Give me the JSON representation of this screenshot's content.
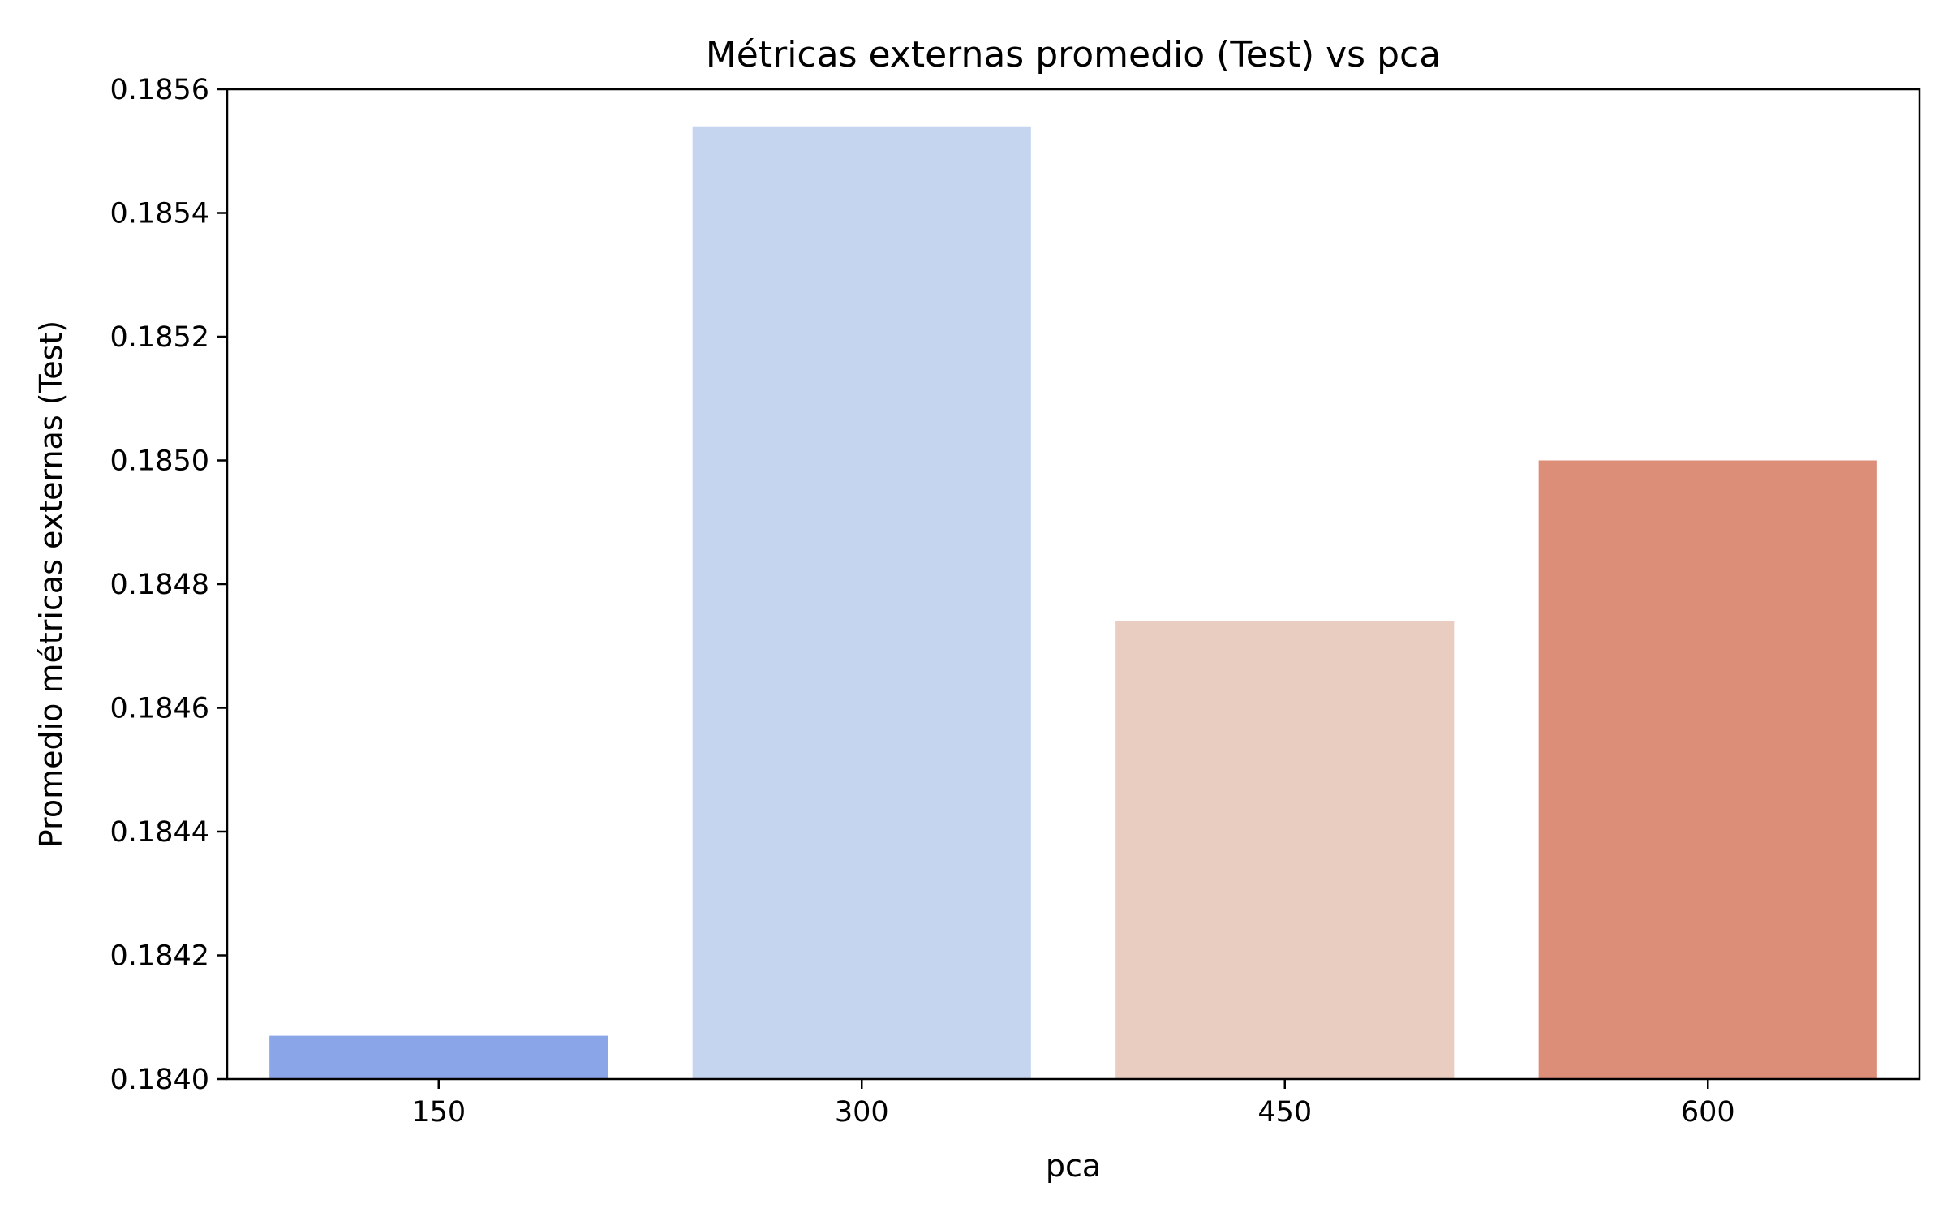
{
  "chart_data": {
    "type": "bar",
    "title": "Métricas externas promedio (Test) vs pca",
    "xlabel": "pca",
    "ylabel": "Promedio métricas externas (Test)",
    "categories": [
      "150",
      "300",
      "450",
      "600"
    ],
    "values": [
      0.18407,
      0.18554,
      0.18474,
      0.185
    ],
    "colors": [
      "#8aa5e8",
      "#c6d5ef",
      "#e9cdc0",
      "#dc8e78"
    ],
    "ylim": [
      0.184,
      0.1856
    ],
    "yticks": [
      0.184,
      0.1842,
      0.1844,
      0.1846,
      0.1848,
      0.185,
      0.1852,
      0.1854,
      0.1856
    ],
    "ytick_labels": [
      "0.1840",
      "0.1842",
      "0.1844",
      "0.1846",
      "0.1848",
      "0.1850",
      "0.1852",
      "0.1854",
      "0.1856"
    ],
    "grid": false,
    "legend": "none"
  }
}
